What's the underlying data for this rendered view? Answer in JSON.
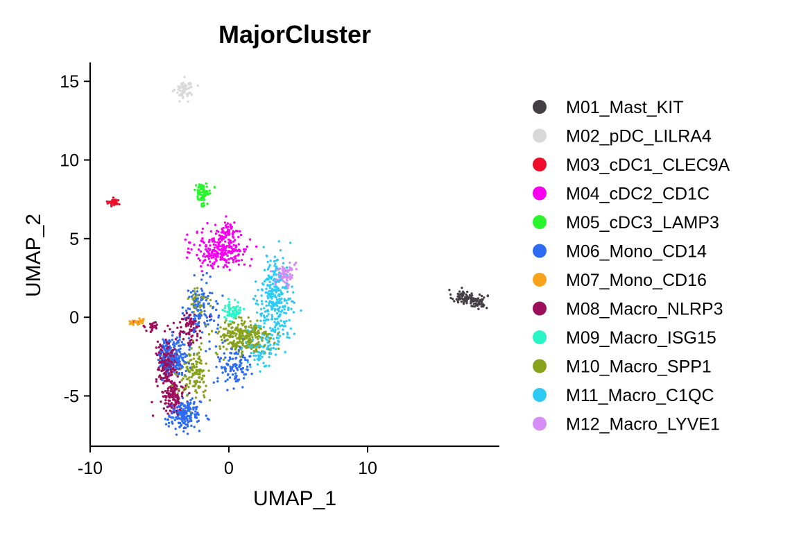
{
  "chart_data": {
    "type": "scatter",
    "title": "MajorCluster",
    "xlabel": "UMAP_1",
    "ylabel": "UMAP_2",
    "xlim": [
      -10,
      19.5
    ],
    "ylim": [
      -8.2,
      16.2
    ],
    "x_ticks": [
      -10,
      0,
      10
    ],
    "x_tick_labels": [
      "-10",
      "0",
      "10"
    ],
    "y_ticks": [
      -5,
      0,
      5,
      10,
      15
    ],
    "y_tick_labels": [
      "-5",
      "0",
      "5",
      "10",
      "15"
    ],
    "grid": false,
    "legend_position": "right",
    "series": [
      {
        "name": "M01_Mast_KIT",
        "color": "#433F43",
        "clusters": [
          [
            16.8,
            1.3,
            0.5,
            0.3,
            60
          ],
          [
            17.9,
            1.0,
            0.5,
            0.3,
            60
          ]
        ]
      },
      {
        "name": "M02_pDC_LILRA4",
        "color": "#D9D9D9",
        "clusters": [
          [
            -3.2,
            14.5,
            0.4,
            0.4,
            70
          ]
        ]
      },
      {
        "name": "M03_cDC1_CLEC9A",
        "color": "#EE0E2C",
        "clusters": [
          [
            -8.3,
            7.3,
            0.3,
            0.15,
            40
          ]
        ]
      },
      {
        "name": "M04_cDC2_CD1C",
        "color": "#F700F0",
        "clusters": [
          [
            -0.5,
            4.3,
            1.3,
            0.8,
            260
          ],
          [
            0.0,
            5.5,
            0.4,
            0.4,
            50
          ]
        ]
      },
      {
        "name": "M05_cDC3_LAMP3",
        "color": "#29F52C",
        "clusters": [
          [
            -1.9,
            8.0,
            0.4,
            0.35,
            60
          ],
          [
            -1.8,
            7.3,
            0.2,
            0.3,
            10
          ]
        ]
      },
      {
        "name": "M06_Mono_CD14",
        "color": "#2D6BF3",
        "clusters": [
          [
            -4.0,
            -2.5,
            0.7,
            0.8,
            200
          ],
          [
            -3.2,
            -6.2,
            0.8,
            0.6,
            180
          ],
          [
            -2.0,
            0.5,
            0.8,
            1.3,
            120
          ],
          [
            0.4,
            -3.0,
            0.8,
            0.9,
            110
          ]
        ]
      },
      {
        "name": "M07_Mono_CD16",
        "color": "#F9A21B",
        "clusters": [
          [
            -6.6,
            -0.3,
            0.4,
            0.15,
            35
          ]
        ]
      },
      {
        "name": "M08_Macro_NLRP3",
        "color": "#9C0D5A",
        "clusters": [
          [
            -4.5,
            -3.0,
            0.5,
            0.9,
            180
          ],
          [
            -4.0,
            -5.0,
            0.5,
            0.6,
            130
          ],
          [
            -2.8,
            -0.7,
            0.6,
            0.7,
            80
          ],
          [
            -5.6,
            -0.6,
            0.6,
            0.25,
            25
          ]
        ]
      },
      {
        "name": "M09_Macro_ISG15",
        "color": "#2AF5C9",
        "clusters": [
          [
            0.2,
            0.4,
            0.5,
            0.4,
            70
          ]
        ]
      },
      {
        "name": "M10_Macro_SPP1",
        "color": "#88A21B",
        "clusters": [
          [
            1.0,
            -1.3,
            1.3,
            0.8,
            260
          ],
          [
            -2.5,
            -3.6,
            0.7,
            1.0,
            130
          ],
          [
            -2.2,
            1.0,
            0.5,
            0.6,
            40
          ]
        ]
      },
      {
        "name": "M11_Macro_C1QC",
        "color": "#2DCBF4",
        "clusters": [
          [
            3.3,
            1.0,
            0.8,
            1.8,
            300
          ],
          [
            2.5,
            -2.0,
            0.8,
            0.8,
            80
          ]
        ]
      },
      {
        "name": "M12_Macro_LYVE1",
        "color": "#D68DF5",
        "clusters": [
          [
            4.1,
            2.7,
            0.45,
            0.5,
            80
          ]
        ]
      }
    ]
  }
}
